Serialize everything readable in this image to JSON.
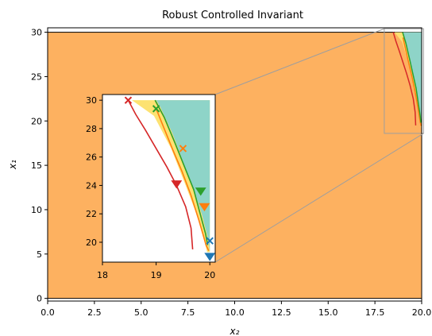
{
  "chart_data": {
    "type": "area",
    "title": "Robust Controlled Invariant",
    "xlabel": "x₂",
    "ylabel": "x₁",
    "xlim": [
      0,
      20
    ],
    "ylim": [
      -0.3,
      30.5
    ],
    "xticks": [
      0.0,
      2.5,
      5.0,
      7.5,
      10.0,
      12.5,
      15.0,
      17.5,
      20.0
    ],
    "xtick_labels": [
      "0.0",
      "2.5",
      "5.0",
      "7.5",
      "10.0",
      "12.5",
      "15.0",
      "17.5",
      "20.0"
    ],
    "yticks": [
      0,
      5,
      10,
      15,
      20,
      25,
      30
    ],
    "ytick_labels": [
      "0",
      "5",
      "10",
      "15",
      "20",
      "25",
      "30"
    ],
    "region": {
      "x": [
        0,
        20
      ],
      "y": [
        0,
        30
      ]
    },
    "inset": {
      "xlim": [
        18,
        20.1
      ],
      "ylim": [
        18.6,
        30.4
      ],
      "xticks": [
        18,
        19,
        20
      ],
      "xtick_labels": [
        "18",
        "19",
        "20"
      ],
      "yticks": [
        20,
        22,
        24,
        26,
        28,
        30
      ],
      "ytick_labels": [
        "20",
        "22",
        "24",
        "26",
        "28",
        "30"
      ]
    },
    "regions": [
      {
        "name": "yellow",
        "color": "#fde272",
        "points": [
          [
            18.55,
            30
          ],
          [
            20,
            30
          ],
          [
            20,
            19.3
          ],
          [
            19.95,
            19.3
          ],
          [
            19.8,
            21.5
          ],
          [
            19.55,
            24
          ],
          [
            19.28,
            26.6
          ],
          [
            18.96,
            28.9
          ]
        ]
      },
      {
        "name": "teal",
        "color": "#8ed4c8",
        "points": [
          [
            19.0,
            30
          ],
          [
            20,
            30
          ],
          [
            20,
            19.3
          ],
          [
            19.97,
            20.2
          ],
          [
            19.85,
            22
          ],
          [
            19.7,
            23.7
          ],
          [
            19.5,
            25.7
          ],
          [
            19.3,
            27.7
          ],
          [
            19.08,
            29.5
          ]
        ]
      }
    ],
    "series": [
      {
        "color": "#d62728",
        "values": [
          [
            18.48,
            30
          ],
          [
            18.62,
            29.0
          ],
          [
            18.8,
            27.9
          ],
          [
            19.0,
            26.6
          ],
          [
            19.2,
            25.3
          ],
          [
            19.38,
            24.0
          ],
          [
            19.55,
            22.5
          ],
          [
            19.65,
            21.0
          ],
          [
            19.68,
            19.5
          ]
        ]
      },
      {
        "color": "#ff7f0e",
        "values": [
          [
            19.0,
            29.4
          ],
          [
            19.15,
            28.0
          ],
          [
            19.3,
            26.6
          ],
          [
            19.48,
            25.0
          ],
          [
            19.65,
            23.3
          ],
          [
            19.8,
            21.5
          ],
          [
            19.93,
            19.8
          ],
          [
            19.98,
            19.4
          ]
        ]
      },
      {
        "color": "#2ca02c",
        "values": [
          [
            18.98,
            30
          ],
          [
            19.15,
            28.8
          ],
          [
            19.35,
            27.0
          ],
          [
            19.53,
            25.3
          ],
          [
            19.7,
            23.7
          ],
          [
            19.82,
            22.0
          ],
          [
            19.92,
            20.6
          ],
          [
            19.96,
            19.8
          ]
        ]
      }
    ],
    "markers": [
      {
        "shape": "x",
        "color": "#d62728",
        "x": 18.48,
        "y": 30.0
      },
      {
        "shape": "x",
        "color": "#2ca02c",
        "x": 19.0,
        "y": 29.4
      },
      {
        "shape": "x",
        "color": "#ff7f0e",
        "x": 19.5,
        "y": 26.6
      },
      {
        "shape": "x",
        "color": "#1f77b4",
        "x": 20.0,
        "y": 20.1
      },
      {
        "shape": "triangle-down",
        "color": "#d62728",
        "x": 19.38,
        "y": 24.1
      },
      {
        "shape": "triangle-down",
        "color": "#2ca02c",
        "x": 19.83,
        "y": 23.6
      },
      {
        "shape": "triangle-down",
        "color": "#ff7f0e",
        "x": 19.9,
        "y": 22.5
      },
      {
        "shape": "triangle-down",
        "color": "#1f77b4",
        "x": 20.0,
        "y": 19.0
      }
    ],
    "colors": {
      "orange": "#fdb160",
      "yellow": "#fde272",
      "teal": "#8ed4c8",
      "red": "#d62728",
      "green": "#2ca02c",
      "dark-orange": "#ff7f0e",
      "blue": "#1f77b4",
      "frame": "#000000"
    },
    "grid": false
  }
}
